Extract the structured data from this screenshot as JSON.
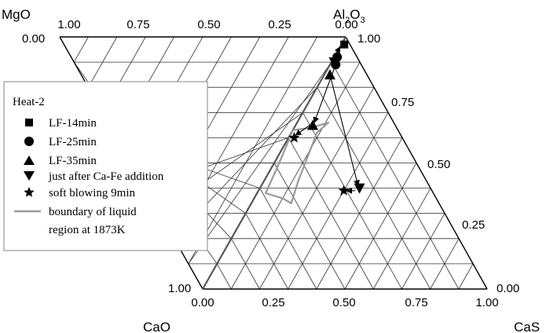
{
  "chart_data": {
    "type": "ternary",
    "legend_title": "Heat-2",
    "legend_placement": "left",
    "grid": true,
    "grid_step": 0.1,
    "axes": {
      "top_left_label": "MgO",
      "top_right_label": [
        "Al",
        "2",
        "O",
        "3"
      ],
      "bottom_left_label": "CaO",
      "bottom_right_label": "CaS"
    },
    "ticks": {
      "top": [
        "1.00",
        "0.75",
        "0.50",
        "0.25",
        "0.00"
      ],
      "top_left_corner": "0.00",
      "right": [
        "1.00",
        "0.75",
        "0.50",
        "0.25",
        "0.00"
      ],
      "bottom": [
        "0.00",
        "0.25",
        "0.50",
        "0.75",
        "1.00"
      ],
      "bottom_left_corner": "1.00"
    },
    "series": [
      {
        "name": "LF-14min",
        "marker": "square",
        "points": [
          {
            "CaS": 0.01,
            "Al2O3": 0.97
          }
        ]
      },
      {
        "name": "LF-25min",
        "marker": "circle",
        "points": [
          {
            "CaS": 0.01,
            "Al2O3": 0.92
          },
          {
            "CaS": 0.02,
            "Al2O3": 0.89
          }
        ]
      },
      {
        "name": "LF-35min",
        "marker": "triangle-up",
        "points": [
          {
            "CaS": 0.02,
            "Al2O3": 0.85
          },
          {
            "CaS": 0.06,
            "Al2O3": 0.65
          }
        ]
      },
      {
        "name": "just after Ca-Fe addition",
        "marker": "triangle-down",
        "points": [
          {
            "CaS": 0.01,
            "Al2O3": 0.9
          },
          {
            "CaS": 0.35,
            "Al2O3": 0.4
          }
        ]
      },
      {
        "name": "soft blowing 9min",
        "marker": "star",
        "points": [
          {
            "CaS": 0.02,
            "Al2O3": 0.6
          },
          {
            "CaS": 0.3,
            "Al2O3": 0.39
          }
        ]
      }
    ],
    "boundary": {
      "name": "boundary of liquid region at 1873K",
      "color": "#999999",
      "points": [
        {
          "CaS": 0.0,
          "Al2O3": 0.63
        },
        {
          "CaS": 0.06,
          "Al2O3": 0.64
        },
        {
          "CaS": 0.11,
          "Al2O3": 0.66
        },
        {
          "CaS": 0.09,
          "Al2O3": 0.62
        },
        {
          "CaS": 0.12,
          "Al2O3": 0.43
        },
        {
          "CaS": 0.14,
          "Al2O3": 0.34
        },
        {
          "CaS": 0.1,
          "Al2O3": 0.36
        },
        {
          "CaS": 0.03,
          "Al2O3": 0.38
        },
        {
          "CaS": 0.02,
          "Al2O3": 0.48
        },
        {
          "CaS": 0.01,
          "Al2O3": 0.56
        },
        {
          "CaS": 0.0,
          "Al2O3": 0.63
        }
      ]
    },
    "reference_line": {
      "from": {
        "CaS": 0.0,
        "Al2O3": 0.0
      },
      "to": {
        "CaS": 0.0,
        "Al2O3": 1.0
      },
      "color": "#555555"
    },
    "arrows": [
      {
        "from": {
          "CaS": 0.02,
          "Al2O3": 0.89
        },
        "to": {
          "CaS": 0.06,
          "Al2O3": 0.66
        }
      },
      {
        "from": {
          "CaS": 0.05,
          "Al2O3": 0.65
        },
        "to": {
          "CaS": 0.02,
          "Al2O3": 0.61
        }
      },
      {
        "from": {
          "CaS": 0.02,
          "Al2O3": 0.85
        },
        "to": {
          "CaS": 0.34,
          "Al2O3": 0.41
        }
      },
      {
        "from": {
          "CaS": 0.34,
          "Al2O3": 0.39
        },
        "to": {
          "CaS": 0.31,
          "Al2O3": 0.39
        }
      },
      {
        "from": {
          "CaS": 0.0,
          "Al2O3": 0.9
        },
        "to": {
          "CaS": 0.0,
          "Al2O3": 0.96
        }
      }
    ]
  }
}
